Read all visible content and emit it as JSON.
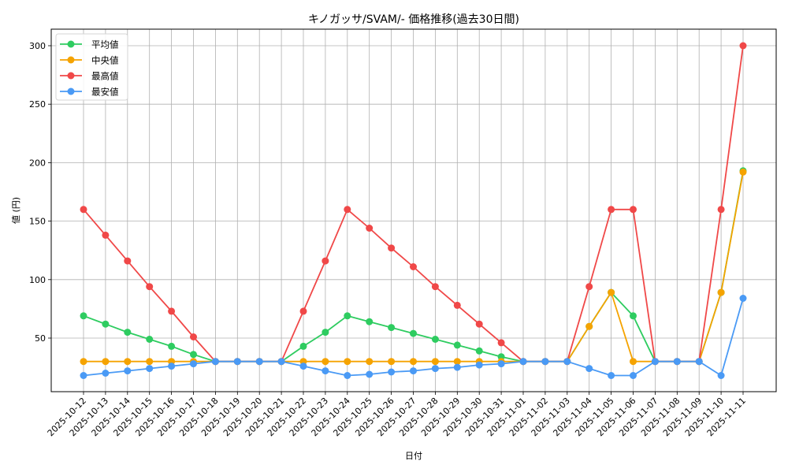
{
  "chart_data": {
    "type": "line",
    "title": "キノガッサ/SVAM/- 価格推移(過去30日間)",
    "xlabel": "日付",
    "ylabel": "値 (円)",
    "ylim": [
      10,
      313
    ],
    "yticks": [
      50,
      100,
      150,
      200,
      250,
      300
    ],
    "grid": true,
    "legend_position": "upper left",
    "categories": [
      "2025-10-12",
      "2025-10-13",
      "2025-10-14",
      "2025-10-15",
      "2025-10-16",
      "2025-10-17",
      "2025-10-18",
      "2025-10-19",
      "2025-10-20",
      "2025-10-21",
      "2025-10-22",
      "2025-10-23",
      "2025-10-24",
      "2025-10-25",
      "2025-10-26",
      "2025-10-27",
      "2025-10-28",
      "2025-10-29",
      "2025-10-30",
      "2025-10-31",
      "2025-11-01",
      "2025-11-02",
      "2025-11-03",
      "2025-11-04",
      "2025-11-05",
      "2025-11-06",
      "2025-11-07",
      "2025-11-08",
      "2025-11-09",
      "2025-11-10",
      "2025-11-11"
    ],
    "series": [
      {
        "name": "平均値",
        "color": "#2ecc60",
        "values": [
          69,
          62,
          55,
          49,
          43,
          36,
          30,
          30,
          30,
          30,
          43,
          55,
          69,
          64,
          59,
          54,
          49,
          44,
          39,
          34,
          30,
          30,
          30,
          60,
          89,
          69,
          30,
          30,
          30,
          89,
          193
        ]
      },
      {
        "name": "中央値",
        "color": "#f5a300",
        "values": [
          30,
          30,
          30,
          30,
          30,
          30,
          30,
          30,
          30,
          30,
          30,
          30,
          30,
          30,
          30,
          30,
          30,
          30,
          30,
          30,
          30,
          30,
          30,
          60,
          89,
          30,
          30,
          30,
          30,
          89,
          192
        ]
      },
      {
        "name": "最高値",
        "color": "#f04848",
        "values": [
          160,
          138,
          116,
          94,
          73,
          51,
          30,
          30,
          30,
          30,
          73,
          116,
          160,
          144,
          127,
          111,
          94,
          78,
          62,
          46,
          30,
          30,
          30,
          94,
          160,
          160,
          30,
          30,
          30,
          160,
          300
        ]
      },
      {
        "name": "最安値",
        "color": "#4a9af5",
        "values": [
          18,
          20,
          22,
          24,
          26,
          28,
          30,
          30,
          30,
          30,
          26,
          22,
          18,
          19,
          21,
          22,
          24,
          25,
          27,
          28,
          30,
          30,
          30,
          24,
          18,
          18,
          30,
          30,
          30,
          18,
          84
        ]
      }
    ]
  }
}
